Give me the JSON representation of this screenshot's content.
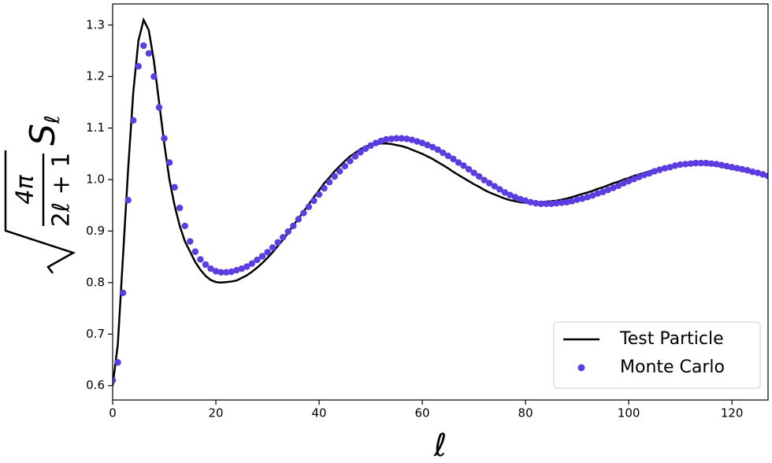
{
  "chart_data": {
    "type": "line-scatter",
    "x_label": "ℓ",
    "y_label": {
      "numerator": "4π",
      "denominator": "2ℓ + 1",
      "symbol": "S",
      "subscript": "ℓ"
    },
    "x": [
      0,
      1,
      2,
      3,
      4,
      5,
      6,
      7,
      8,
      9,
      10,
      11,
      12,
      13,
      14,
      15,
      16,
      17,
      18,
      19,
      20,
      21,
      22,
      23,
      24,
      25,
      26,
      27,
      28,
      29,
      30,
      31,
      32,
      33,
      34,
      35,
      36,
      37,
      38,
      39,
      40,
      41,
      42,
      43,
      44,
      45,
      46,
      47,
      48,
      49,
      50,
      51,
      52,
      53,
      54,
      55,
      56,
      57,
      58,
      59,
      60,
      61,
      62,
      63,
      64,
      65,
      66,
      67,
      68,
      69,
      70,
      71,
      72,
      73,
      74,
      75,
      76,
      77,
      78,
      79,
      80,
      81,
      82,
      83,
      84,
      85,
      86,
      87,
      88,
      89,
      90,
      91,
      92,
      93,
      94,
      95,
      96,
      97,
      98,
      99,
      100,
      101,
      102,
      103,
      104,
      105,
      106,
      107,
      108,
      109,
      110,
      111,
      112,
      113,
      114,
      115,
      116,
      117,
      118,
      119,
      120,
      121,
      122,
      123,
      124,
      125,
      126,
      127
    ],
    "series": [
      {
        "name": "Test Particle",
        "kind": "line",
        "color": "#000000",
        "values": [
          0.6,
          0.68,
          0.85,
          1.02,
          1.17,
          1.27,
          1.31,
          1.29,
          1.23,
          1.15,
          1.07,
          1.0,
          0.95,
          0.91,
          0.88,
          0.86,
          0.84,
          0.825,
          0.813,
          0.805,
          0.801,
          0.8,
          0.801,
          0.802,
          0.804,
          0.809,
          0.814,
          0.821,
          0.829,
          0.838,
          0.848,
          0.859,
          0.871,
          0.883,
          0.897,
          0.911,
          0.924,
          0.938,
          0.952,
          0.966,
          0.979,
          0.993,
          1.004,
          1.016,
          1.026,
          1.036,
          1.045,
          1.052,
          1.059,
          1.064,
          1.067,
          1.069,
          1.07,
          1.07,
          1.069,
          1.067,
          1.065,
          1.062,
          1.058,
          1.054,
          1.05,
          1.045,
          1.04,
          1.034,
          1.028,
          1.022,
          1.015,
          1.009,
          1.003,
          0.997,
          0.991,
          0.986,
          0.98,
          0.975,
          0.971,
          0.967,
          0.963,
          0.96,
          0.958,
          0.956,
          0.955,
          0.955,
          0.955,
          0.956,
          0.957,
          0.958,
          0.959,
          0.961,
          0.963,
          0.966,
          0.969,
          0.972,
          0.975,
          0.978,
          0.982,
          0.985,
          0.989,
          0.993,
          0.996,
          1.0,
          1.003,
          1.007,
          1.01,
          1.013,
          1.016,
          1.019,
          1.021,
          1.024,
          1.026,
          1.027,
          1.028,
          1.029,
          1.03,
          1.03,
          1.03,
          1.029,
          1.028,
          1.027,
          1.025,
          1.023,
          1.021,
          1.019,
          1.017,
          1.015,
          1.013,
          1.011,
          1.009,
          1.007
        ]
      },
      {
        "name": "Monte Carlo",
        "kind": "scatter",
        "color": "#5b3de0",
        "values": [
          0.61,
          0.645,
          0.78,
          0.96,
          1.115,
          1.22,
          1.26,
          1.245,
          1.2,
          1.14,
          1.08,
          1.033,
          0.985,
          0.945,
          0.91,
          0.88,
          0.86,
          0.845,
          0.835,
          0.827,
          0.822,
          0.82,
          0.82,
          0.821,
          0.824,
          0.827,
          0.831,
          0.837,
          0.844,
          0.851,
          0.859,
          0.868,
          0.878,
          0.888,
          0.899,
          0.91,
          0.923,
          0.935,
          0.947,
          0.959,
          0.971,
          0.983,
          0.995,
          1.006,
          1.016,
          1.026,
          1.036,
          1.045,
          1.053,
          1.06,
          1.066,
          1.071,
          1.075,
          1.078,
          1.079,
          1.08,
          1.08,
          1.079,
          1.077,
          1.074,
          1.071,
          1.067,
          1.063,
          1.058,
          1.052,
          1.046,
          1.04,
          1.033,
          1.027,
          1.02,
          1.013,
          1.006,
          0.999,
          0.993,
          0.987,
          0.981,
          0.975,
          0.97,
          0.966,
          0.962,
          0.959,
          0.956,
          0.954,
          0.953,
          0.953,
          0.953,
          0.954,
          0.955,
          0.956,
          0.958,
          0.961,
          0.963,
          0.966,
          0.969,
          0.973,
          0.976,
          0.98,
          0.984,
          0.988,
          0.993,
          0.997,
          1.001,
          1.005,
          1.009,
          1.012,
          1.016,
          1.019,
          1.022,
          1.024,
          1.027,
          1.029,
          1.03,
          1.031,
          1.032,
          1.032,
          1.032,
          1.031,
          1.03,
          1.028,
          1.026,
          1.024,
          1.022,
          1.02,
          1.018,
          1.015,
          1.013,
          1.01,
          1.007
        ]
      }
    ],
    "xlim": [
      0,
      127
    ],
    "ylim": [
      0.572,
      1.341
    ],
    "xticks": [
      0,
      20,
      40,
      60,
      80,
      100,
      120
    ],
    "yticks": [
      0.6,
      0.7,
      0.8,
      0.9,
      {
        "value": 1,
        "label": "1.0"
      },
      1.1,
      1.2,
      1.3
    ],
    "grid": false,
    "legend": "lower right"
  }
}
